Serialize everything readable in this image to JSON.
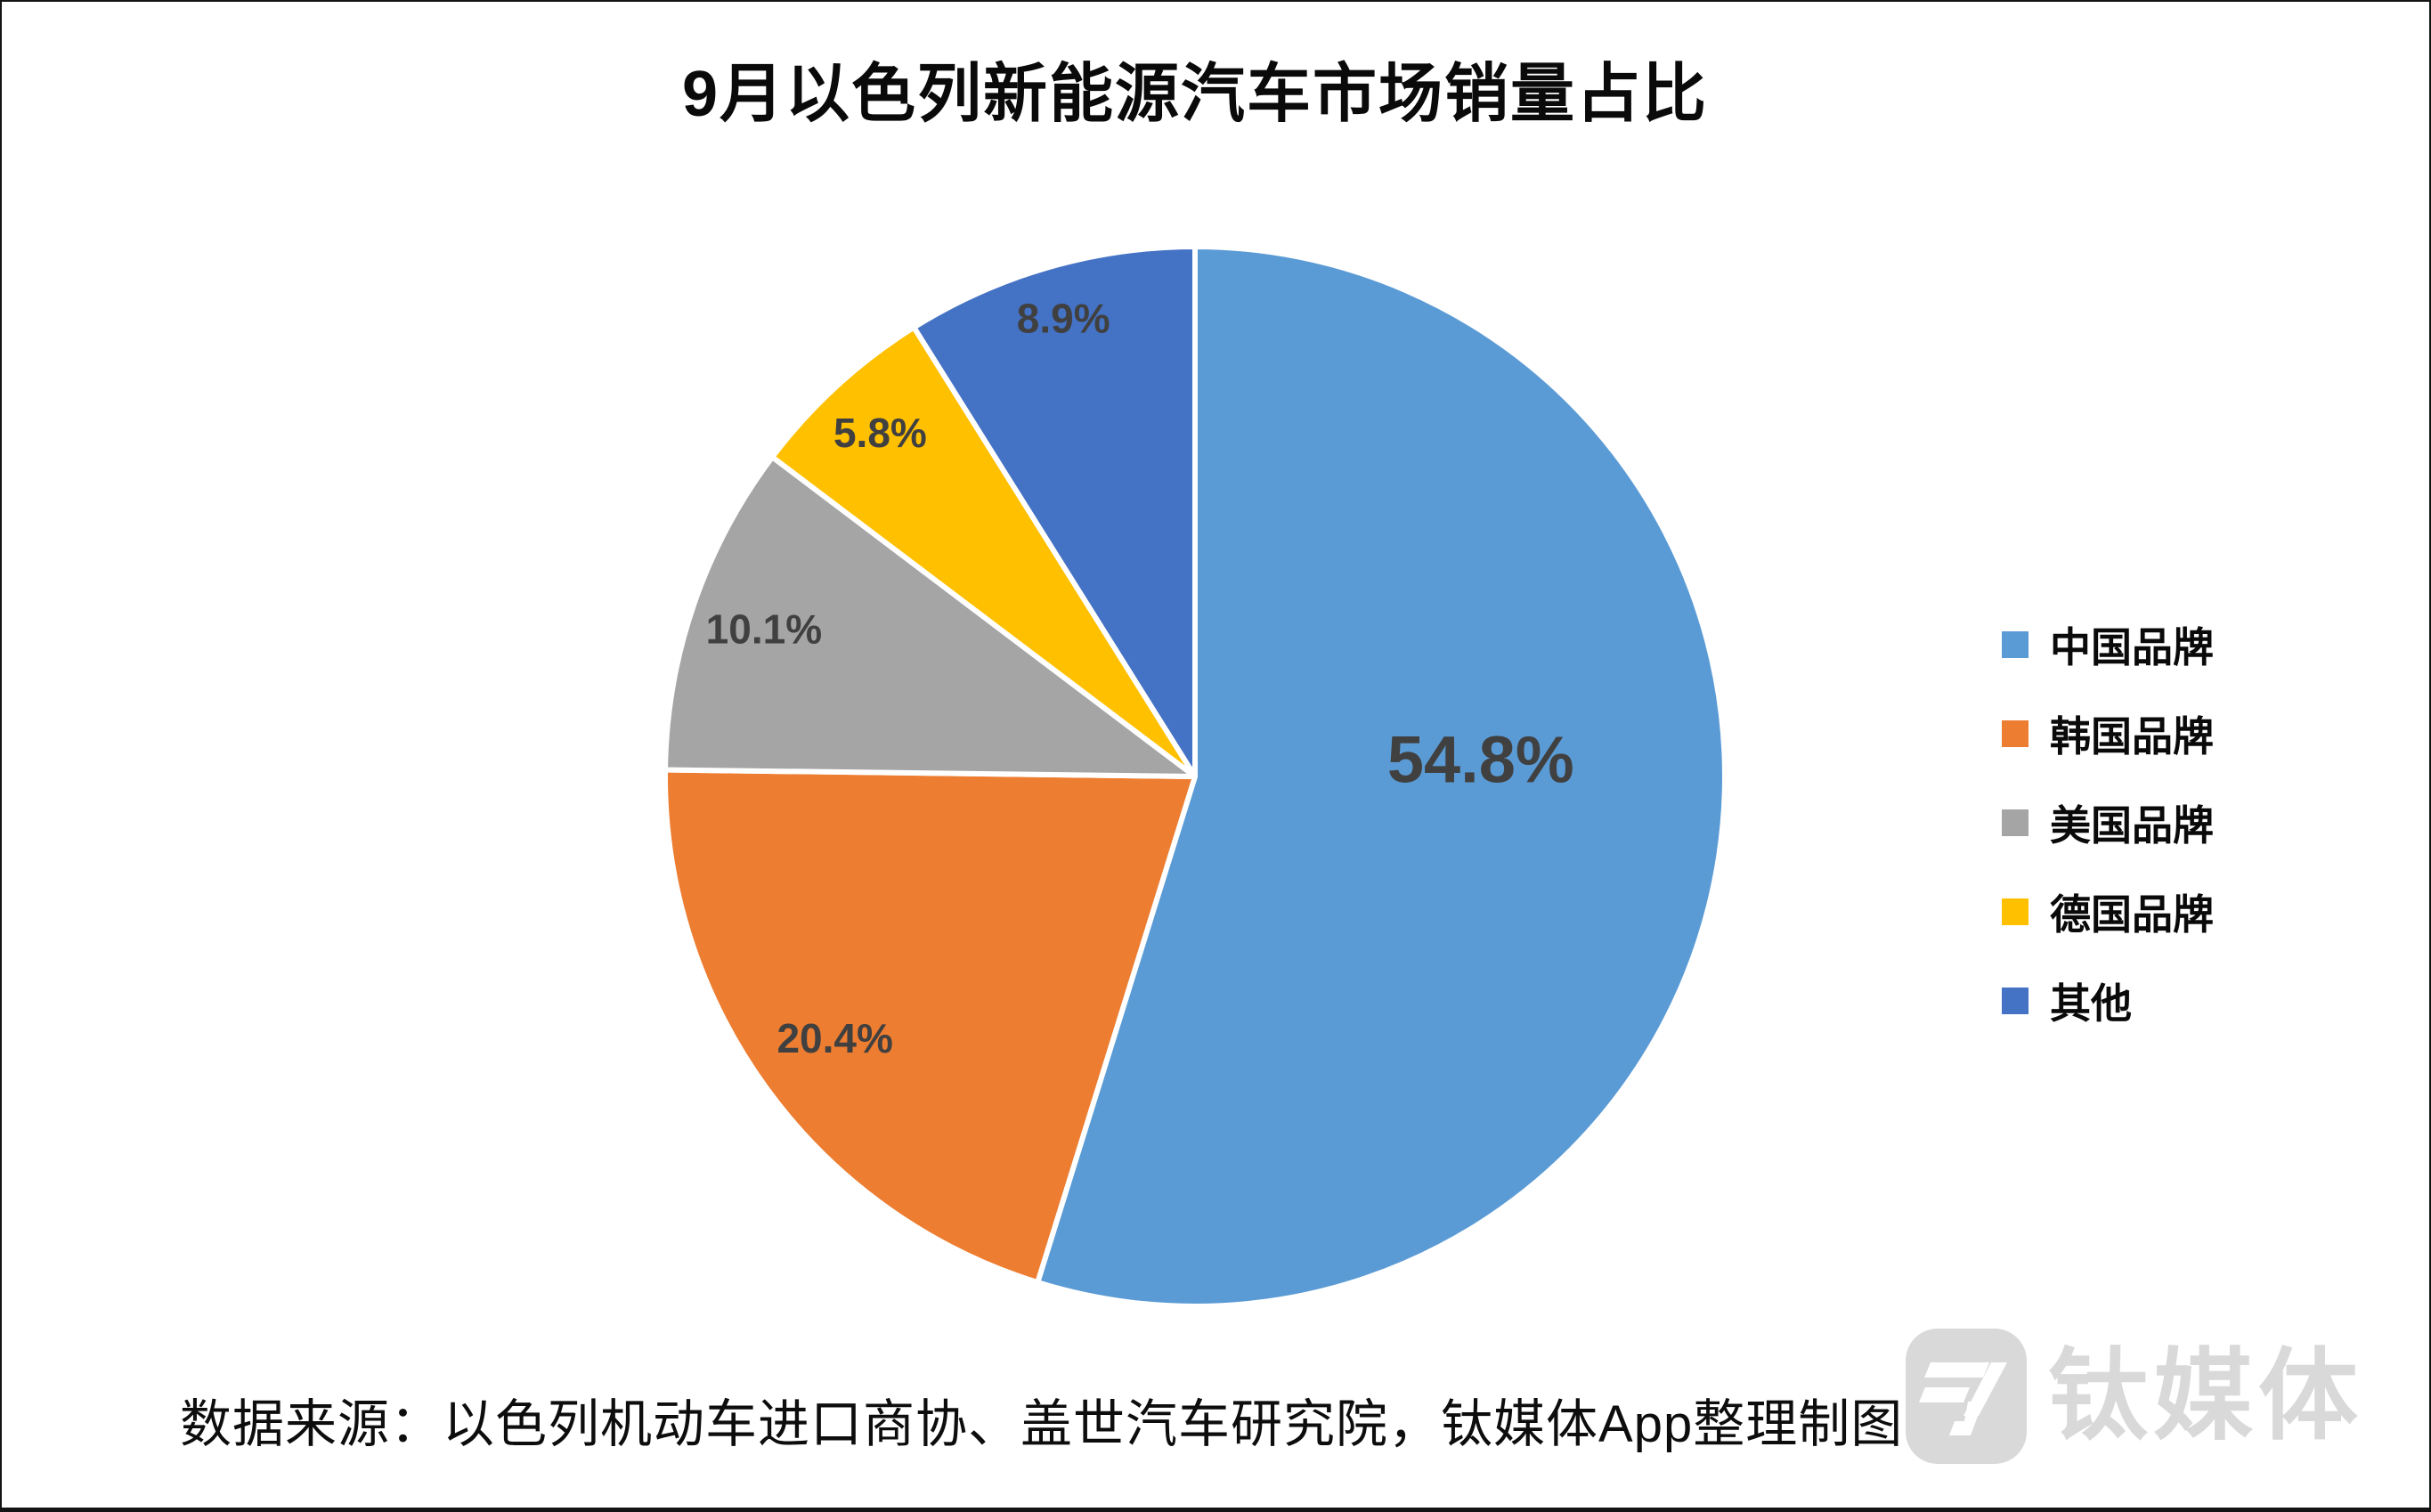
{
  "page": {
    "background_color": "#ffffff",
    "border_color": "#141414"
  },
  "chart_data": {
    "type": "pie",
    "title": "9月以色列新能源汽车市场销量占比",
    "unit": "%",
    "start_angle_deg": 0,
    "direction": "clockwise",
    "slices": [
      {
        "label": "中国品牌",
        "value": 54.8,
        "display": "54.8%",
        "color": "#5B9BD5"
      },
      {
        "label": "韩国品牌",
        "value": 20.4,
        "display": "20.4%",
        "color": "#ED7D31"
      },
      {
        "label": "美国品牌",
        "value": 10.1,
        "display": "10.1%",
        "color": "#A5A5A5"
      },
      {
        "label": "德国品牌",
        "value": 5.8,
        "display": "5.8%",
        "color": "#FFC000"
      },
      {
        "label": "其他",
        "value": 8.9,
        "display": "8.9%",
        "color": "#4472C4"
      }
    ],
    "legend": {
      "position": "right",
      "entries": [
        "中国品牌",
        "韩国品牌",
        "美国品牌",
        "德国品牌",
        "其他"
      ]
    },
    "label_color": "#404040",
    "separator_color": "#ffffff",
    "grid": "off"
  },
  "footer": {
    "source_text": "数据来源：以色列机动车进口商协、盖世汽车研究院，钛媒体App整理制图"
  },
  "watermark": {
    "text": "钛媒体",
    "color": "#d9d9d9"
  }
}
